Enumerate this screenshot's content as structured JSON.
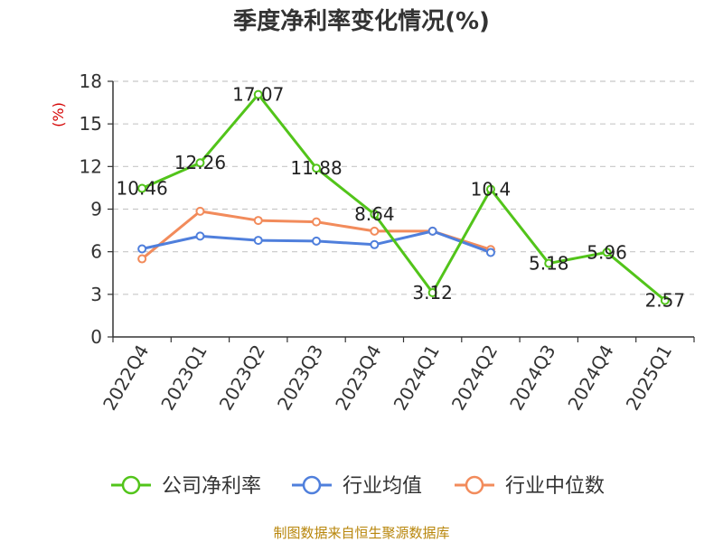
{
  "chart_data": {
    "type": "line",
    "title": "季度净利率变化情况(%)",
    "ylabel": "(%)",
    "xlabel": "",
    "categories": [
      "2022Q4",
      "2023Q1",
      "2023Q2",
      "2023Q3",
      "2023Q4",
      "2024Q1",
      "2024Q2",
      "2024Q3",
      "2024Q4",
      "2025Q1"
    ],
    "ylim": [
      0,
      18
    ],
    "yticks": [
      0,
      3,
      6,
      9,
      12,
      15,
      18
    ],
    "grid": true,
    "legend_position": "bottom",
    "series": [
      {
        "name": "公司净利率",
        "color": "#52c41a",
        "values": [
          10.46,
          12.26,
          17.07,
          11.88,
          8.64,
          3.12,
          10.4,
          5.18,
          5.96,
          2.57
        ],
        "labels": [
          "10.46",
          "12.26",
          "17.07",
          "11.88",
          "8.64",
          "3.12",
          "10.4",
          "5.18",
          "5.96",
          "2.57"
        ]
      },
      {
        "name": "行业均值",
        "color": "#4f7fdc",
        "values": [
          6.2,
          7.1,
          6.8,
          6.75,
          6.5,
          7.45,
          5.95,
          null,
          null,
          null
        ]
      },
      {
        "name": "行业中位数",
        "color": "#f28b5b",
        "values": [
          5.5,
          8.85,
          8.2,
          8.1,
          7.45,
          7.45,
          6.15,
          null,
          null,
          null
        ]
      }
    ]
  },
  "footer": "制图数据来自恒生聚源数据库"
}
